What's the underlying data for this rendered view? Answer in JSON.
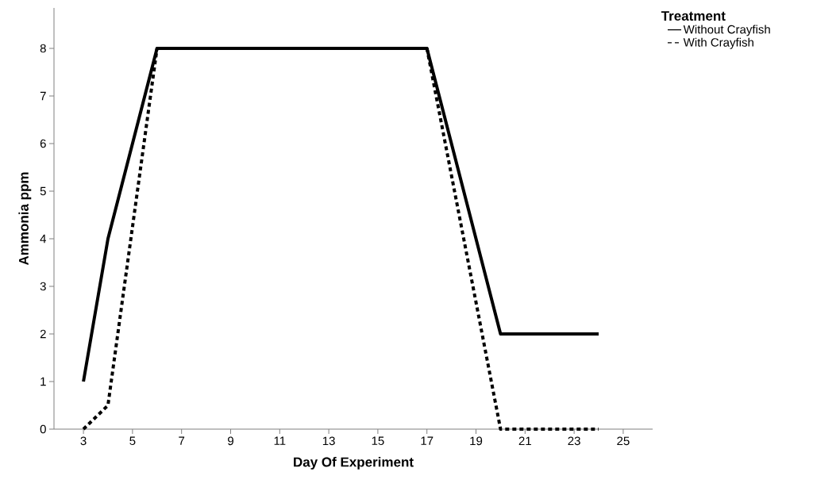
{
  "chart_data": {
    "type": "line",
    "xlabel": "Day Of Experiment",
    "ylabel": "Ammonia ppm",
    "legend_title": "Treatment",
    "xlim": [
      1.8,
      26.2
    ],
    "xticks": [
      3,
      5,
      7,
      9,
      11,
      13,
      15,
      17,
      19,
      21,
      23,
      25
    ],
    "ylim": [
      0,
      8.85
    ],
    "yticks": [
      0,
      1,
      2,
      3,
      4,
      5,
      6,
      7,
      8
    ],
    "grid": false,
    "legend": "top right",
    "marker": "none",
    "series": [
      {
        "name": "Without Crayfish",
        "color": "#000000",
        "line_style": "solid",
        "x": [
          3,
          4,
          6,
          17,
          20,
          24
        ],
        "values": [
          1,
          4,
          8,
          8,
          2,
          2
        ]
      },
      {
        "name": "With Crayfish",
        "color": "#000000",
        "line_style": "dashed",
        "x": [
          3,
          4,
          6,
          17,
          20,
          24
        ],
        "values": [
          0,
          0.5,
          8,
          8,
          0,
          0
        ]
      }
    ]
  }
}
